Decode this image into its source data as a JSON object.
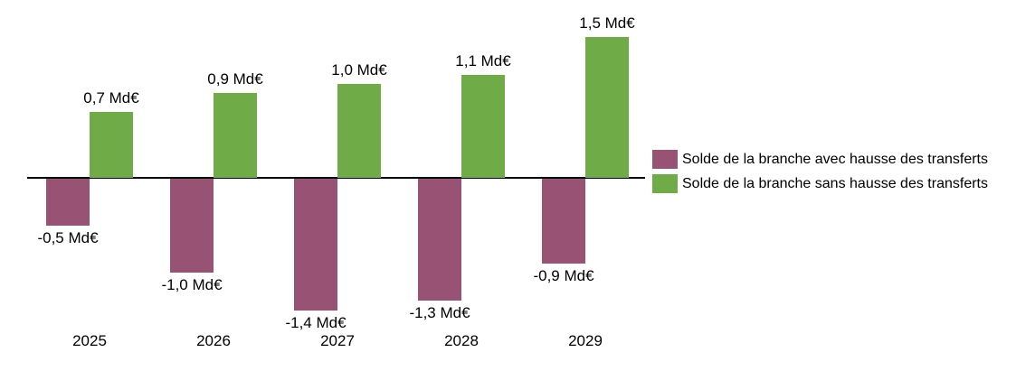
{
  "chart_data": {
    "type": "bar",
    "title": "",
    "xlabel": "",
    "ylabel": "",
    "unit": "Md€",
    "categories": [
      "2025",
      "2026",
      "2027",
      "2028",
      "2029"
    ],
    "series": [
      {
        "name": "Solde de la branche avec hausse des transferts",
        "color": "#985273",
        "values": [
          -0.5,
          -1.0,
          -1.4,
          -1.3,
          -0.9
        ],
        "labels": [
          "-0,5 Md€",
          "-1,0 Md€",
          "-1,4 Md€",
          "-1,3 Md€",
          "-0,9 Md€"
        ]
      },
      {
        "name": "Solde de la branche sans hausse des transferts",
        "color": "#6FAC47",
        "values": [
          0.7,
          0.9,
          1.0,
          1.1,
          1.5
        ],
        "labels": [
          "0,7 Md€",
          "0,9 Md€",
          "1,0 Md€",
          "1,1 Md€",
          "1,5 Md€"
        ]
      }
    ],
    "ylim": [
      -1.5,
      1.6
    ],
    "grid": false,
    "legend_position": "right",
    "axis_color": "#000000",
    "background_color": "#ffffff"
  }
}
